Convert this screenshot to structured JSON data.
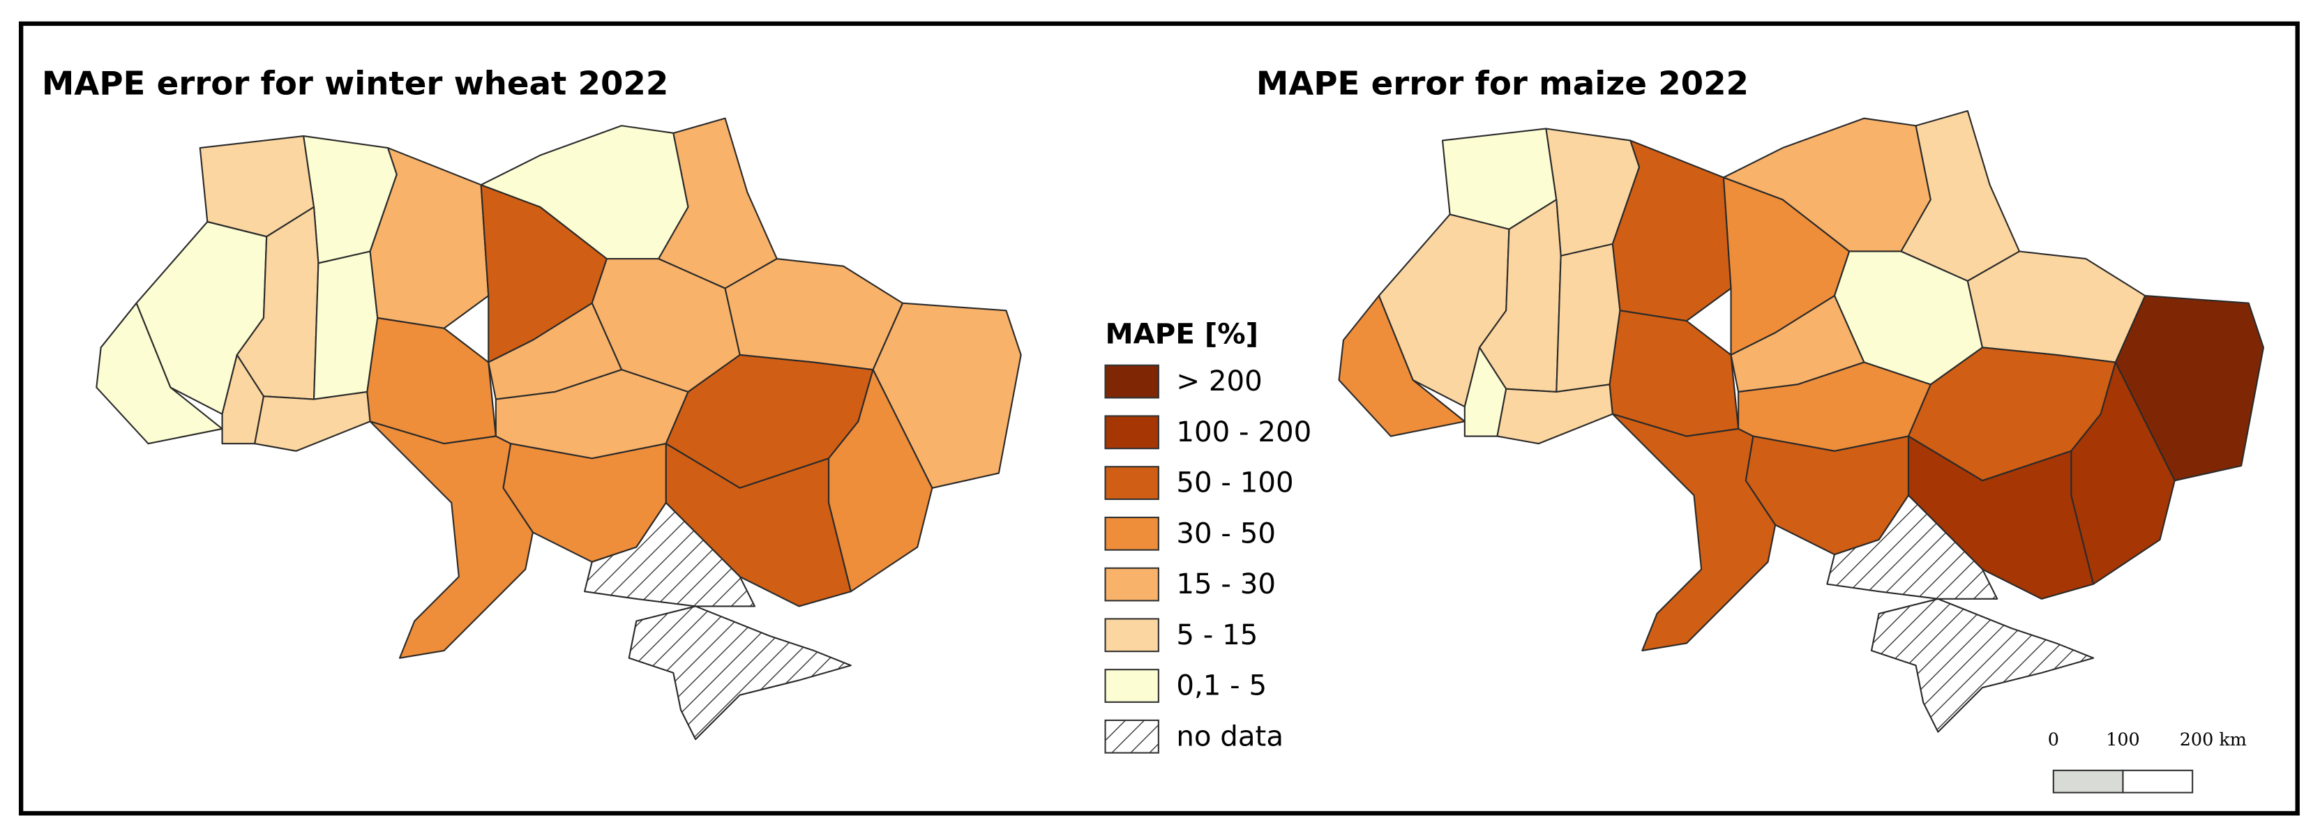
{
  "maps": [
    {
      "title": "MAPE error for winter wheat 2022"
    },
    {
      "title": "MAPE error for maize 2022"
    }
  ],
  "legend": {
    "title": "MAPE [%]",
    "items": [
      "> 200",
      "100 - 200",
      "50 - 100",
      "30 - 50",
      "15 - 30",
      "5 - 15",
      "0,1 - 5",
      "no data"
    ],
    "colors": [
      "#7f2704",
      "#a63603",
      "#d05e14",
      "#ee8d3a",
      "#f8b26a",
      "#fbd6a0",
      "#fcfdd2"
    ]
  },
  "scale_bar": {
    "labels": [
      "0",
      "100",
      "200 km"
    ]
  }
}
